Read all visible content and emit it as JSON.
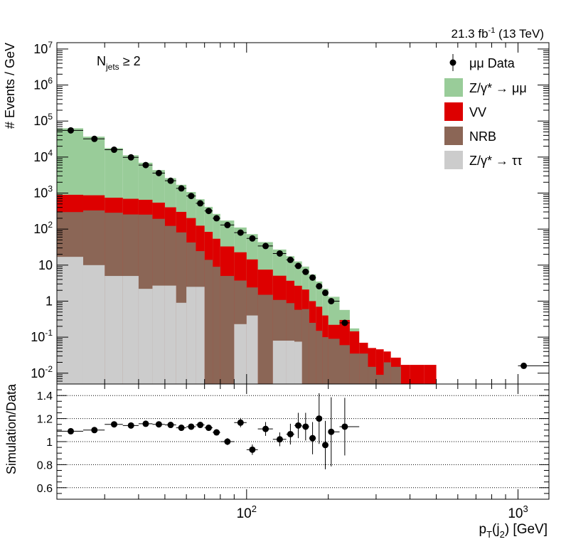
{
  "header": {
    "lumi_text": "21.3 fb",
    "lumi_exp": "-1",
    "energy_text": " (13 TeV)",
    "cut_label_main": "N",
    "cut_label_sub": "jets",
    "cut_label_tail": " ≥ 2"
  },
  "axes": {
    "ylabel_top": "# Events / GeV",
    "ylabel_bottom": "Simulation/Data",
    "xlabel_main": "p",
    "xlabel_sub1": "T",
    "xlabel_mid": "(j",
    "xlabel_sub2": "2",
    "xlabel_tail": ") [GeV]"
  },
  "legend": {
    "data": "μμ Data",
    "zmm": "Z/γ* → μμ",
    "vv": "VV",
    "nrb": "NRB",
    "ztt": "Z/γ* → ττ"
  },
  "colors": {
    "zmm": "#99cc99",
    "vv": "#dd0000",
    "nrb": "#8b6656",
    "ztt": "#cccccc",
    "data": "#000000"
  },
  "chart_data": [
    {
      "type": "bar",
      "title": "",
      "xlabel": "pT(j2) [GeV]",
      "ylabel": "# Events / GeV",
      "xscale": "log",
      "yscale": "log",
      "xlim": [
        20,
        1300
      ],
      "ylim": [
        0.005,
        15000000
      ],
      "yticks": [
        {
          "v": 0.01,
          "b": "10",
          "e": "-2"
        },
        {
          "v": 0.1,
          "b": "10",
          "e": "-1"
        },
        {
          "v": 1,
          "b": "1",
          "e": ""
        },
        {
          "v": 10,
          "b": "10",
          "e": ""
        },
        {
          "v": 100,
          "b": "10",
          "e": "2"
        },
        {
          "v": 1000,
          "b": "10",
          "e": "3"
        },
        {
          "v": 10000,
          "b": "10",
          "e": "4"
        },
        {
          "v": 100000,
          "b": "10",
          "e": "5"
        },
        {
          "v": 1000000,
          "b": "10",
          "e": "6"
        },
        {
          "v": 10000000,
          "b": "10",
          "e": "7"
        }
      ],
      "bin_edges": [
        20,
        25,
        30,
        35,
        40,
        45,
        50,
        55,
        60,
        65,
        70,
        75,
        80,
        90,
        100,
        110,
        125,
        140,
        150,
        160,
        170,
        180,
        190,
        200,
        220,
        240,
        260,
        280,
        300,
        320,
        340,
        370,
        400,
        450,
        500,
        600,
        1000,
        1300
      ],
      "series": [
        {
          "name": "Z/γ* → ττ",
          "key": "ztt",
          "values": [
            17,
            10,
            5,
            5,
            2.2,
            2.7,
            2.7,
            0.9,
            2.5,
            2.5,
            0,
            0,
            0,
            0.23,
            0.4,
            0,
            0.08,
            0.08,
            0.075,
            0,
            0,
            0,
            0,
            0,
            0,
            0,
            0,
            0,
            0,
            0,
            0,
            0,
            0,
            0,
            0,
            0,
            0
          ]
        },
        {
          "name": "NRB",
          "key": "nrb",
          "values": [
            280,
            320,
            280,
            250,
            250,
            190,
            120,
            80,
            40,
            22,
            14,
            9,
            5,
            3.5,
            2,
            1.5,
            1,
            0.8,
            0.5,
            0.6,
            0.25,
            0.15,
            0.1,
            0.09,
            0.06,
            0.035,
            0.035,
            0.015,
            0.009,
            0.02,
            0.015,
            0.005,
            0.005,
            0.005,
            0.005,
            0.005,
            0.005
          ]
        },
        {
          "name": "VV",
          "key": "vv",
          "values": [
            600,
            540,
            460,
            440,
            400,
            350,
            280,
            220,
            160,
            100,
            70,
            45,
            28,
            19,
            12,
            6,
            4,
            2.8,
            2.1,
            1.5,
            0.75,
            0.55,
            0.3,
            0.13,
            0.24,
            0.11,
            0.035,
            0.035,
            0.037,
            0.02,
            0.012,
            0.012,
            0.012,
            0.012
          ]
        },
        {
          "name": "Z/γ* → μμ",
          "key": "zmm",
          "values": [
            62000,
            36000,
            17000,
            10500,
            6300,
            3800,
            2200,
            1400,
            870,
            550,
            330,
            210,
            140,
            88,
            58,
            36,
            22,
            14,
            10,
            7,
            4.5,
            2.8,
            1.8,
            1.1,
            0.27,
            0.03
          ]
        }
      ],
      "data_points": [
        {
          "x": 22.5,
          "y": 55000
        },
        {
          "x": 27.5,
          "y": 32000
        },
        {
          "x": 32.5,
          "y": 16000
        },
        {
          "x": 37.5,
          "y": 9800
        },
        {
          "x": 42.5,
          "y": 6000
        },
        {
          "x": 47.5,
          "y": 3600
        },
        {
          "x": 52.5,
          "y": 2200
        },
        {
          "x": 57.5,
          "y": 1350
        },
        {
          "x": 62.5,
          "y": 830
        },
        {
          "x": 67.5,
          "y": 520
        },
        {
          "x": 72.5,
          "y": 320
        },
        {
          "x": 77.5,
          "y": 200
        },
        {
          "x": 85,
          "y": 130
        },
        {
          "x": 95,
          "y": 80
        },
        {
          "x": 105,
          "y": 55
        },
        {
          "x": 117.5,
          "y": 34
        },
        {
          "x": 132.5,
          "y": 21
        },
        {
          "x": 145,
          "y": 14
        },
        {
          "x": 155,
          "y": 9.5
        },
        {
          "x": 165,
          "y": 6.5
        },
        {
          "x": 175,
          "y": 4.5
        },
        {
          "x": 185,
          "y": 2.6
        },
        {
          "x": 195,
          "y": 1.7
        },
        {
          "x": 205,
          "y": 1.0
        },
        {
          "x": 230,
          "y": 0.25
        },
        {
          "x": 1050,
          "y": 0.016
        }
      ]
    },
    {
      "type": "scatter",
      "title": "",
      "xlabel": "pT(j2) [GeV]",
      "ylabel": "Simulation/Data",
      "xscale": "log",
      "xlim": [
        20,
        1300
      ],
      "ylim": [
        0.5,
        1.5
      ],
      "yticks": [
        {
          "v": 0.6,
          "t": "0.6"
        },
        {
          "v": 0.8,
          "t": "0.8"
        },
        {
          "v": 1.0,
          "t": "1"
        },
        {
          "v": 1.2,
          "t": "1.2"
        },
        {
          "v": 1.4,
          "t": "1.4"
        }
      ],
      "xticks": [
        {
          "v": 100,
          "b": "10",
          "e": "2"
        },
        {
          "v": 1000,
          "b": "10",
          "e": "3"
        }
      ],
      "gridlines": [
        0.6,
        0.8,
        1.0,
        1.2,
        1.4
      ],
      "points": [
        {
          "x": 22.5,
          "xlo": 20,
          "xhi": 25,
          "y": 1.09,
          "err": 0.012
        },
        {
          "x": 27.5,
          "xlo": 25,
          "xhi": 30,
          "y": 1.1,
          "err": 0.012
        },
        {
          "x": 32.5,
          "xlo": 30,
          "xhi": 35,
          "y": 1.15,
          "err": 0.012
        },
        {
          "x": 37.5,
          "xlo": 35,
          "xhi": 40,
          "y": 1.14,
          "err": 0.012
        },
        {
          "x": 42.5,
          "xlo": 40,
          "xhi": 45,
          "y": 1.155,
          "err": 0.012
        },
        {
          "x": 47.5,
          "xlo": 45,
          "xhi": 50,
          "y": 1.15,
          "err": 0.012
        },
        {
          "x": 52.5,
          "xlo": 50,
          "xhi": 55,
          "y": 1.145,
          "err": 0.012
        },
        {
          "x": 57.5,
          "xlo": 55,
          "xhi": 60,
          "y": 1.12,
          "err": 0.012
        },
        {
          "x": 62.5,
          "xlo": 60,
          "xhi": 65,
          "y": 1.13,
          "err": 0.012
        },
        {
          "x": 67.5,
          "xlo": 65,
          "xhi": 70,
          "y": 1.145,
          "err": 0.012
        },
        {
          "x": 72.5,
          "xlo": 70,
          "xhi": 75,
          "y": 1.12,
          "err": 0.015
        },
        {
          "x": 77.5,
          "xlo": 75,
          "xhi": 80,
          "y": 1.08,
          "err": 0.02
        },
        {
          "x": 85,
          "xlo": 80,
          "xhi": 90,
          "y": 1.0,
          "err": 0.03
        },
        {
          "x": 95,
          "xlo": 90,
          "xhi": 100,
          "y": 1.165,
          "err": 0.04
        },
        {
          "x": 105,
          "xlo": 100,
          "xhi": 110,
          "y": 0.93,
          "err": 0.045
        },
        {
          "x": 117.5,
          "xlo": 110,
          "xhi": 125,
          "y": 1.11,
          "err": 0.06
        },
        {
          "x": 132.5,
          "xlo": 125,
          "xhi": 140,
          "y": 1.02,
          "err": 0.06
        },
        {
          "x": 145,
          "xlo": 140,
          "xhi": 150,
          "y": 1.065,
          "err": 0.09
        },
        {
          "x": 155,
          "xlo": 150,
          "xhi": 160,
          "y": 1.14,
          "err": 0.11
        },
        {
          "x": 165,
          "xlo": 160,
          "xhi": 170,
          "y": 1.13,
          "err": 0.12
        },
        {
          "x": 175,
          "xlo": 170,
          "xhi": 180,
          "y": 1.03,
          "err": 0.14
        },
        {
          "x": 185,
          "xlo": 180,
          "xhi": 190,
          "y": 1.2,
          "err": 0.22
        },
        {
          "x": 195,
          "xlo": 190,
          "xhi": 200,
          "y": 0.97,
          "err": 0.21
        },
        {
          "x": 205,
          "xlo": 200,
          "xhi": 220,
          "y": 1.085,
          "err": 0.3
        },
        {
          "x": 230,
          "xlo": 220,
          "xhi": 260,
          "y": 1.13,
          "err": 0.25
        }
      ]
    }
  ]
}
